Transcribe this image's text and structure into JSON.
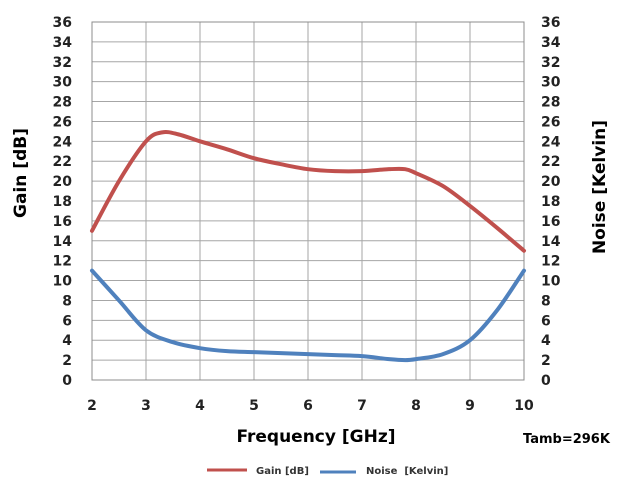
{
  "chart_data": {
    "type": "line",
    "title": "",
    "xlabel": "Frequency [GHz]",
    "ylabel_left": "Gain [dB]",
    "ylabel_right": "Noise [Kelvin]",
    "xlim": [
      2,
      10
    ],
    "ylim": [
      0,
      36
    ],
    "xticks": [
      "2",
      "3",
      "4",
      "5",
      "6",
      "7",
      "8",
      "9",
      "10"
    ],
    "yticks": [
      "0",
      "2",
      "4",
      "6",
      "8",
      "10",
      "12",
      "14",
      "16",
      "18",
      "20",
      "22",
      "24",
      "26",
      "28",
      "30",
      "32",
      "34",
      "36"
    ],
    "grid": true,
    "legend_position": "bottom",
    "annotation": "Tamb=296K",
    "series": [
      {
        "name": "Gain [dB]",
        "color": "#c0504d",
        "x": [
          2,
          2.5,
          3,
          3.3,
          3.6,
          4,
          4.5,
          5,
          5.5,
          6,
          6.5,
          7,
          7.5,
          7.8,
          8,
          8.5,
          9,
          9.5,
          10
        ],
        "y": [
          15,
          20,
          24,
          24.9,
          24.7,
          24,
          23.2,
          22.3,
          21.7,
          21.2,
          21.0,
          21.0,
          21.2,
          21.2,
          20.8,
          19.5,
          17.5,
          15.3,
          13
        ]
      },
      {
        "name": "Noise  [Kelvin]",
        "color": "#4f81bd",
        "x": [
          2,
          2.5,
          3,
          3.5,
          4,
          4.5,
          5,
          5.5,
          6,
          6.5,
          7,
          7.5,
          7.8,
          8,
          8.5,
          9,
          9.5,
          10
        ],
        "y": [
          11,
          8,
          5,
          3.8,
          3.2,
          2.9,
          2.8,
          2.7,
          2.6,
          2.5,
          2.4,
          2.1,
          2.0,
          2.1,
          2.6,
          4,
          7,
          11
        ]
      }
    ]
  }
}
